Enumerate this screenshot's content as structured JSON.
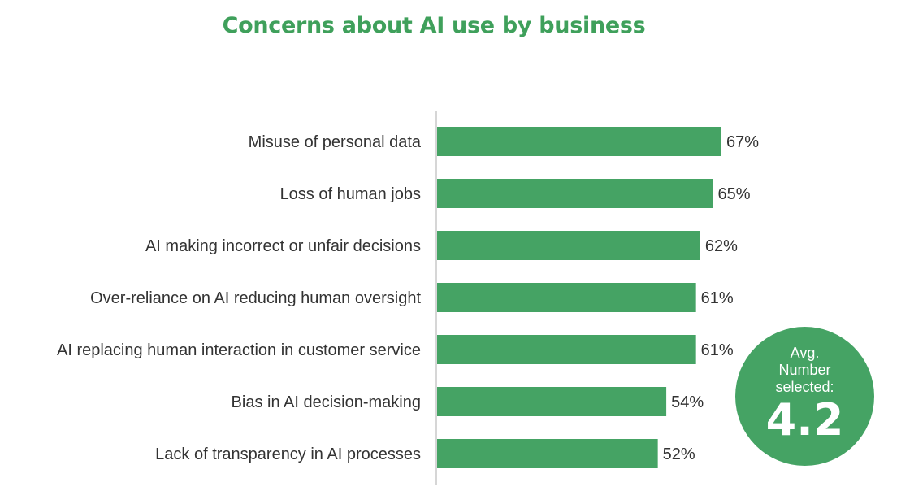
{
  "colors": {
    "accent": "#45a364",
    "title": "#3fa05b",
    "text": "#333333",
    "axis": "#d6d6d6"
  },
  "chart_data": {
    "type": "bar",
    "orientation": "horizontal",
    "title": "Concerns about AI use by business",
    "categories": [
      "Misuse of personal data",
      "Loss of human jobs",
      "AI making incorrect or unfair decisions",
      "Over-reliance on AI reducing human oversight",
      "AI replacing human interaction in customer service",
      "Bias in AI decision-making",
      "Lack of transparency in AI processes"
    ],
    "values": [
      67,
      65,
      62,
      61,
      61,
      54,
      52
    ],
    "value_labels": [
      "67%",
      "65%",
      "62%",
      "61%",
      "61%",
      "54%",
      "52%"
    ],
    "unit": "%",
    "xlim": [
      0,
      67
    ],
    "grid": false,
    "legend": "none"
  },
  "badge": {
    "label": "Avg. Number selected:",
    "value": "4.2"
  }
}
